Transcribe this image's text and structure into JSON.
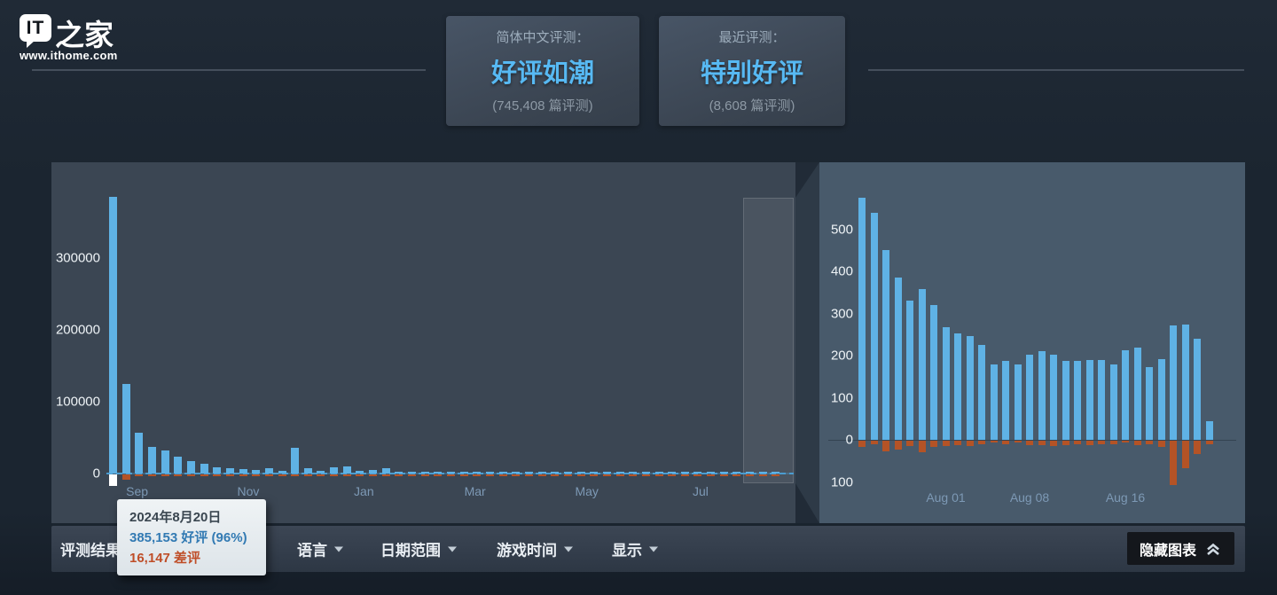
{
  "logo": {
    "brand_short": "IT",
    "brand_suffix": "之家",
    "website": "www.ithome.com"
  },
  "summary": {
    "cards": [
      {
        "label": "简体中文评测：",
        "rating": "好评如潮",
        "count": "(745,408 篇评测)"
      },
      {
        "label": "最近评测：",
        "rating": "特别好评",
        "count": "(8,608 篇评测)"
      }
    ]
  },
  "tooltip": {
    "date": "2024年8月20日",
    "positive": "385,153 好评 (96%)",
    "negative": "16,147 差评"
  },
  "toolbar": {
    "items": [
      "评测结果",
      "语言",
      "日期范围",
      "游戏时间",
      "显示"
    ],
    "hide_graph_label": "隐藏图表"
  },
  "colors": {
    "positive_bar": "#5fb2e5",
    "negative_bar": "#b45326",
    "highlight_marker": "#ffffff",
    "rating_text": "#57b9f3",
    "panel_left": "#3b4653",
    "panel_right": "#485a6b"
  },
  "chart_data": [
    {
      "type": "bar",
      "description": "all-time weekly review histogram",
      "y_ticks": [
        {
          "value": 0,
          "label": "0"
        },
        {
          "value": 100000,
          "label": "100000"
        },
        {
          "value": 200000,
          "label": "200000"
        },
        {
          "value": 300000,
          "label": "300000"
        }
      ],
      "x_ticks": [
        {
          "label": "Sep",
          "bar_index": 1.85
        },
        {
          "label": "Nov",
          "bar_index": 10.4
        },
        {
          "label": "Jan",
          "bar_index": 19.3
        },
        {
          "label": "Mar",
          "bar_index": 27.85
        },
        {
          "label": "May",
          "bar_index": 36.45
        },
        {
          "label": "Jul",
          "bar_index": 45.2
        }
      ],
      "ylim": [
        -20000,
        390000
      ],
      "hovered_bar_index": 0,
      "selection_region": {
        "start_bar_index": 48.8,
        "end_bar_index": 52.7
      },
      "series": [
        {
          "name": "positive",
          "values": [
            385153,
            125000,
            57000,
            37000,
            32000,
            23000,
            17000,
            13500,
            8600,
            7400,
            6200,
            5000,
            7400,
            3700,
            36000,
            7400,
            3700,
            8600,
            9900,
            3700,
            4900,
            7400,
            2500,
            2500,
            2500,
            2500,
            2000,
            2000,
            2000,
            2000,
            2000,
            2000,
            2000,
            2000,
            2000,
            2000,
            2000,
            2500,
            2000,
            2000,
            2000,
            2000,
            2000,
            2000,
            2500,
            2000,
            2000,
            2500,
            3000,
            3000,
            2500,
            2000
          ]
        },
        {
          "name": "negative",
          "values": [
            -16147,
            -7000,
            -2500,
            -2000,
            -1500,
            -1200,
            -1000,
            -1000,
            -800,
            -800,
            -700,
            -700,
            -800,
            -700,
            -1500,
            -800,
            -600,
            -800,
            -800,
            -600,
            -500,
            -500,
            -400,
            -400,
            -400,
            -400,
            -400,
            -400,
            -400,
            -400,
            -400,
            -400,
            -400,
            -400,
            -400,
            -400,
            -400,
            -400,
            -400,
            -400,
            -400,
            -400,
            -400,
            -400,
            -400,
            -400,
            -400,
            -400,
            -500,
            -500,
            -400,
            -400
          ]
        }
      ]
    },
    {
      "type": "bar",
      "description": "recent 30-day daily review histogram",
      "y_ticks": [
        {
          "value": 500,
          "label": "500"
        },
        {
          "value": 400,
          "label": "400"
        },
        {
          "value": 300,
          "label": "300"
        },
        {
          "value": 200,
          "label": "200"
        },
        {
          "value": 100,
          "label": "100"
        },
        {
          "value": 0,
          "label": "0"
        },
        {
          "value": -100,
          "label": "100"
        }
      ],
      "x_ticks": [
        {
          "label": "Aug 01",
          "bar_index": 7
        },
        {
          "label": "Aug 08",
          "bar_index": 14
        },
        {
          "label": "Aug 16",
          "bar_index": 22
        }
      ],
      "ylim": [
        -130,
        600
      ],
      "series": [
        {
          "name": "positive",
          "values": [
            575,
            540,
            450,
            385,
            330,
            358,
            320,
            268,
            253,
            247,
            225,
            178,
            188,
            178,
            203,
            210,
            203,
            188,
            188,
            190,
            190,
            180,
            213,
            220,
            173,
            192,
            272,
            274,
            241,
            45
          ]
        },
        {
          "name": "negative",
          "values": [
            -15,
            -8,
            -25,
            -22,
            -12,
            -28,
            -15,
            -12,
            -10,
            -12,
            -8,
            -5,
            -8,
            -5,
            -10,
            -10,
            -12,
            -10,
            -8,
            -10,
            -8,
            -8,
            -5,
            -10,
            -8,
            -15,
            -105,
            -65,
            -32,
            -8
          ]
        }
      ]
    }
  ]
}
